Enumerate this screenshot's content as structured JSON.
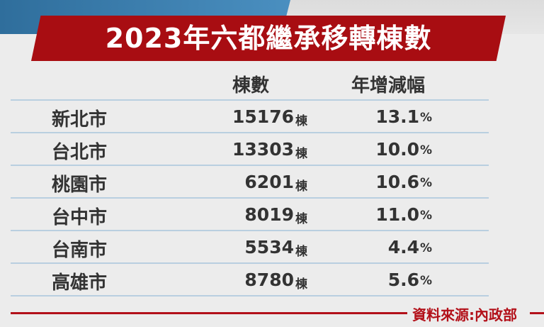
{
  "title": "2023年六都繼承移轉棟數",
  "headers": {
    "count": "棟數",
    "change": "年增減幅"
  },
  "units": {
    "count": "棟",
    "change": "%"
  },
  "rows": [
    {
      "city": "新北市",
      "count": "15176",
      "change": "13.1"
    },
    {
      "city": "台北市",
      "count": "13303",
      "change": "10.0"
    },
    {
      "city": "桃園市",
      "count": "6201",
      "change": "10.6"
    },
    {
      "city": "台中市",
      "count": "8019",
      "change": "11.0"
    },
    {
      "city": "台南市",
      "count": "5534",
      "change": "4.4"
    },
    {
      "city": "高雄市",
      "count": "8780",
      "change": "5.6"
    }
  ],
  "source": "資料來源:內政部",
  "colors": {
    "banner": "#a80d12",
    "text": "#333333",
    "source": "#b3111a"
  },
  "chart_data": {
    "type": "table",
    "title": "2023年六都繼承移轉棟數",
    "columns": [
      "",
      "棟數",
      "年增減幅"
    ],
    "rows": [
      [
        "新北市",
        15176,
        13.1
      ],
      [
        "台北市",
        13303,
        10.0
      ],
      [
        "桃園市",
        6201,
        10.6
      ],
      [
        "台中市",
        8019,
        11.0
      ],
      [
        "台南市",
        5534,
        4.4
      ],
      [
        "高雄市",
        8780,
        5.6
      ]
    ]
  }
}
